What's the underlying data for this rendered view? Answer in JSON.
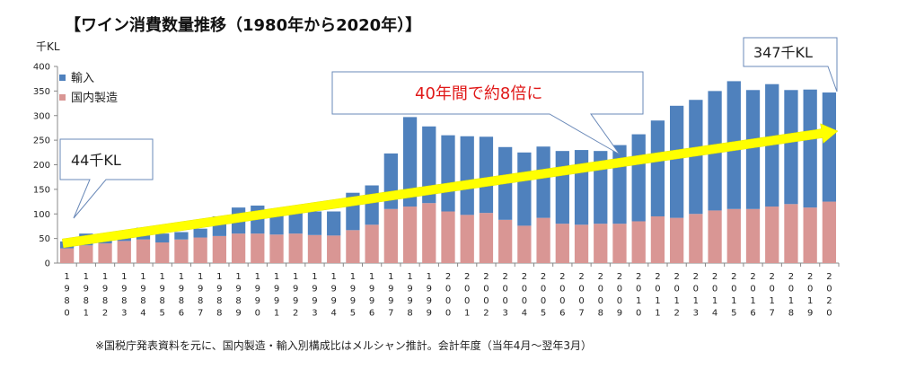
{
  "chart_data": {
    "type": "bar",
    "stacked": true,
    "title": "【ワイン消費数量推移（1980年から2020年）】",
    "ylabel": "千KL",
    "ylim": [
      0,
      400
    ],
    "yticks": [
      0,
      50,
      100,
      150,
      200,
      250,
      300,
      350,
      400
    ],
    "categories": [
      "1980",
      "1981",
      "1982",
      "1983",
      "1984",
      "1985",
      "1986",
      "1987",
      "1988",
      "1989",
      "1990",
      "1991",
      "1992",
      "1993",
      "1994",
      "1995",
      "1996",
      "1997",
      "1998",
      "1999",
      "2000",
      "2001",
      "2002",
      "2003",
      "2004",
      "2005",
      "2006",
      "2007",
      "2008",
      "2009",
      "2010",
      "2011",
      "2012",
      "2013",
      "2014",
      "2015",
      "2016",
      "2017",
      "2018",
      "2019",
      "2020"
    ],
    "series": [
      {
        "name": "国内製造",
        "color": "#d99694",
        "values": [
          30,
          36,
          40,
          45,
          48,
          42,
          48,
          52,
          55,
          60,
          60,
          58,
          60,
          57,
          56,
          67,
          78,
          110,
          115,
          122,
          105,
          98,
          102,
          88,
          76,
          92,
          80,
          78,
          80,
          80,
          85,
          95,
          92,
          100,
          107,
          110,
          110,
          115,
          120,
          113,
          125
        ]
      },
      {
        "name": "輸入",
        "color": "#4f81bd",
        "values": [
          14,
          24,
          19,
          20,
          24,
          18,
          15,
          18,
          40,
          53,
          57,
          52,
          48,
          48,
          49,
          76,
          80,
          113,
          182,
          156,
          155,
          160,
          155,
          148,
          149,
          145,
          148,
          152,
          148,
          160,
          177,
          195,
          228,
          232,
          243,
          260,
          242,
          249,
          232,
          240,
          222
        ]
      }
    ],
    "legend": {
      "position": "top-left",
      "entries": [
        "輸入",
        "国内製造"
      ]
    },
    "grid": false,
    "annotations": {
      "start_label": "44千KL",
      "end_label": "347千KL",
      "growth_label": "40年間で約8倍に",
      "arrow_color": "#ffff00"
    },
    "note": "※国税庁発表資料を元に、国内製造・輸入別構成比はメルシャン推計。会計年度（当年4月～翌年3月）"
  }
}
